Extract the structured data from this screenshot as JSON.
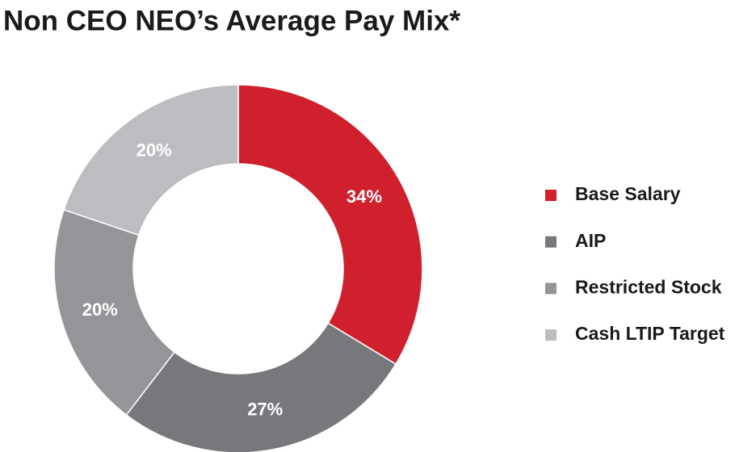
{
  "chart_data": {
    "type": "donut",
    "title": "Non CEO NEO’s Average Pay Mix*",
    "categories": [
      "Base Salary",
      "AIP",
      "Restricted Stock",
      "Cash LTIP Target"
    ],
    "values": [
      34,
      27,
      20,
      20
    ],
    "value_labels": [
      "34%",
      "27%",
      "20%",
      "20%"
    ],
    "colors": [
      "#d0202e",
      "#77787b",
      "#939598",
      "#bcbdc0"
    ]
  }
}
